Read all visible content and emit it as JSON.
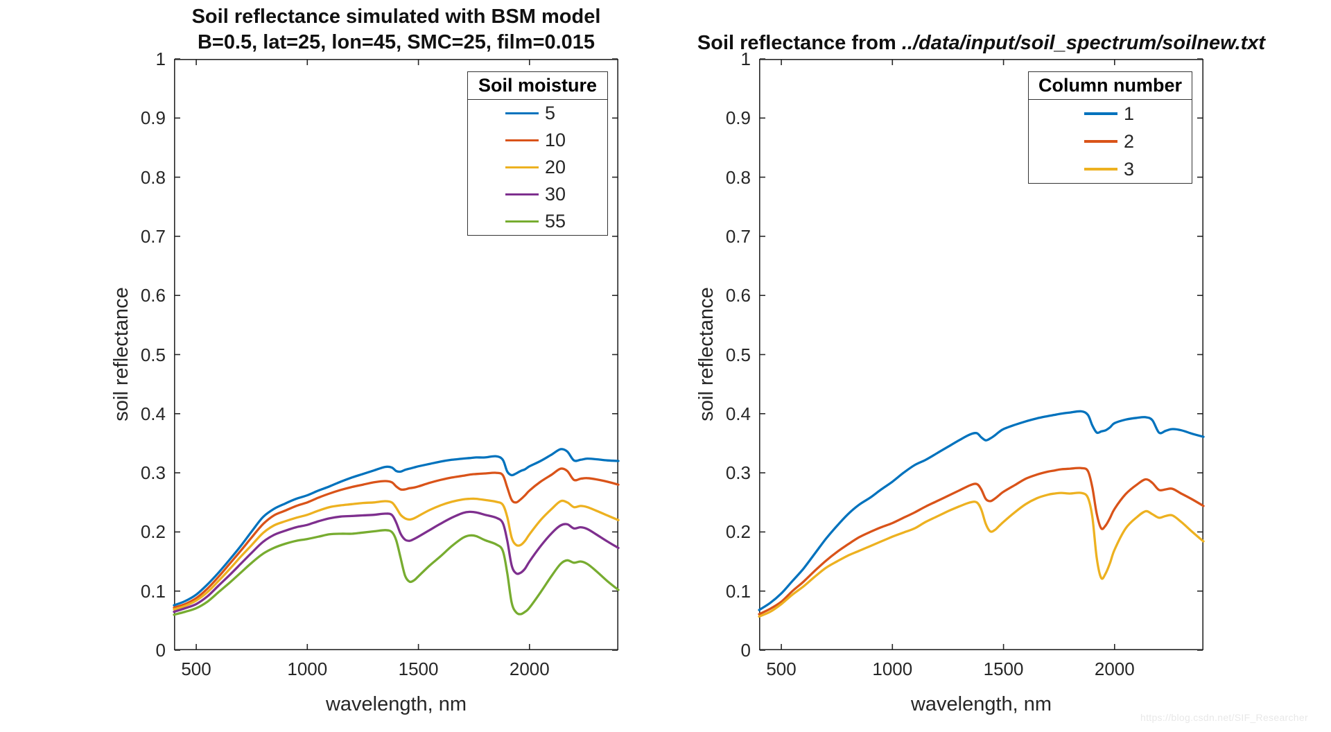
{
  "figure": {
    "watermark": "https://blog.csdn.net/SIF_Researcher"
  },
  "chart_data": [
    {
      "type": "line",
      "title": "Soil reflectance simulated with BSM model",
      "subtitle": "B=0.5, lat=25, lon=45, SMC=25, film=0.015",
      "xlabel": "wavelength, nm",
      "ylabel": "soil reflectance",
      "legend_title": "Soil moisture",
      "legend_position": "upper-right-inside",
      "grid": false,
      "xlim": [
        400,
        2400
      ],
      "ylim": [
        0,
        1
      ],
      "xticks": [
        500,
        1000,
        1500,
        2000
      ],
      "yticks": [
        0,
        0.1,
        0.2,
        0.3,
        0.4,
        0.5,
        0.6,
        0.7,
        0.8,
        0.9,
        1
      ],
      "x": [
        400,
        450,
        500,
        550,
        600,
        650,
        700,
        750,
        800,
        850,
        900,
        950,
        1000,
        1050,
        1100,
        1150,
        1200,
        1250,
        1300,
        1350,
        1380,
        1400,
        1420,
        1440,
        1460,
        1480,
        1500,
        1550,
        1600,
        1650,
        1700,
        1730,
        1760,
        1800,
        1850,
        1880,
        1900,
        1920,
        1940,
        1960,
        1980,
        2000,
        2050,
        2100,
        2140,
        2170,
        2200,
        2230,
        2260,
        2300,
        2350,
        2400
      ],
      "series": [
        {
          "name": "5",
          "color": "#0072BD",
          "values": [
            0.076,
            0.083,
            0.094,
            0.111,
            0.131,
            0.153,
            0.176,
            0.201,
            0.225,
            0.239,
            0.248,
            0.256,
            0.262,
            0.27,
            0.277,
            0.285,
            0.292,
            0.298,
            0.304,
            0.31,
            0.309,
            0.303,
            0.302,
            0.305,
            0.307,
            0.309,
            0.311,
            0.315,
            0.319,
            0.322,
            0.324,
            0.325,
            0.326,
            0.326,
            0.328,
            0.322,
            0.302,
            0.296,
            0.299,
            0.303,
            0.306,
            0.311,
            0.32,
            0.331,
            0.34,
            0.336,
            0.321,
            0.322,
            0.324,
            0.323,
            0.321,
            0.32
          ]
        },
        {
          "name": "10",
          "color": "#D95319",
          "values": [
            0.072,
            0.078,
            0.088,
            0.104,
            0.124,
            0.146,
            0.168,
            0.191,
            0.213,
            0.228,
            0.236,
            0.244,
            0.25,
            0.258,
            0.265,
            0.271,
            0.276,
            0.28,
            0.284,
            0.286,
            0.284,
            0.277,
            0.272,
            0.272,
            0.274,
            0.275,
            0.277,
            0.283,
            0.288,
            0.292,
            0.295,
            0.297,
            0.298,
            0.299,
            0.3,
            0.296,
            0.275,
            0.254,
            0.25,
            0.255,
            0.262,
            0.27,
            0.285,
            0.297,
            0.307,
            0.303,
            0.288,
            0.29,
            0.291,
            0.289,
            0.285,
            0.28
          ]
        },
        {
          "name": "20",
          "color": "#EDB120",
          "values": [
            0.069,
            0.075,
            0.084,
            0.098,
            0.117,
            0.137,
            0.158,
            0.178,
            0.198,
            0.211,
            0.218,
            0.224,
            0.229,
            0.236,
            0.242,
            0.245,
            0.247,
            0.249,
            0.25,
            0.252,
            0.25,
            0.241,
            0.229,
            0.223,
            0.221,
            0.223,
            0.227,
            0.237,
            0.245,
            0.251,
            0.255,
            0.256,
            0.256,
            0.254,
            0.251,
            0.246,
            0.225,
            0.19,
            0.178,
            0.178,
            0.185,
            0.196,
            0.22,
            0.239,
            0.252,
            0.25,
            0.242,
            0.244,
            0.242,
            0.236,
            0.228,
            0.22
          ]
        },
        {
          "name": "30",
          "color": "#7E2F8E",
          "values": [
            0.065,
            0.071,
            0.078,
            0.091,
            0.109,
            0.127,
            0.146,
            0.165,
            0.183,
            0.195,
            0.202,
            0.208,
            0.212,
            0.218,
            0.223,
            0.226,
            0.227,
            0.228,
            0.229,
            0.231,
            0.229,
            0.216,
            0.197,
            0.187,
            0.185,
            0.188,
            0.192,
            0.203,
            0.214,
            0.224,
            0.232,
            0.234,
            0.233,
            0.229,
            0.224,
            0.215,
            0.185,
            0.143,
            0.13,
            0.131,
            0.138,
            0.15,
            0.176,
            0.198,
            0.211,
            0.213,
            0.206,
            0.208,
            0.205,
            0.196,
            0.184,
            0.173
          ]
        },
        {
          "name": "55",
          "color": "#77AC30",
          "values": [
            0.06,
            0.065,
            0.071,
            0.082,
            0.098,
            0.114,
            0.131,
            0.148,
            0.163,
            0.173,
            0.18,
            0.185,
            0.188,
            0.192,
            0.196,
            0.197,
            0.197,
            0.199,
            0.201,
            0.203,
            0.2,
            0.186,
            0.156,
            0.126,
            0.116,
            0.118,
            0.125,
            0.143,
            0.159,
            0.176,
            0.19,
            0.194,
            0.193,
            0.186,
            0.179,
            0.168,
            0.13,
            0.08,
            0.064,
            0.061,
            0.065,
            0.072,
            0.098,
            0.126,
            0.146,
            0.152,
            0.148,
            0.15,
            0.146,
            0.134,
            0.117,
            0.102
          ]
        }
      ]
    },
    {
      "type": "line",
      "title": "Soil reflectance from ../data/input/soil_spectrum/soilnew.txt",
      "title_prefix": "Soil reflectance from ",
      "title_italic": "../data/input/soil_spectrum/soilnew.txt",
      "xlabel": "wavelength, nm",
      "ylabel": "soil reflectance",
      "legend_title": "Column number",
      "legend_position": "upper-right-inside",
      "grid": false,
      "xlim": [
        400,
        2400
      ],
      "ylim": [
        0,
        1
      ],
      "xticks": [
        500,
        1000,
        1500,
        2000
      ],
      "yticks": [
        0,
        0.1,
        0.2,
        0.3,
        0.4,
        0.5,
        0.6,
        0.7,
        0.8,
        0.9,
        1
      ],
      "x": [
        400,
        450,
        500,
        550,
        600,
        650,
        700,
        750,
        800,
        850,
        900,
        950,
        1000,
        1050,
        1100,
        1150,
        1200,
        1250,
        1300,
        1350,
        1380,
        1400,
        1420,
        1440,
        1460,
        1480,
        1500,
        1550,
        1600,
        1650,
        1700,
        1730,
        1760,
        1800,
        1850,
        1880,
        1900,
        1920,
        1940,
        1960,
        1980,
        2000,
        2050,
        2100,
        2140,
        2170,
        2200,
        2230,
        2260,
        2300,
        2350,
        2400
      ],
      "series": [
        {
          "name": "1",
          "color": "#0072BD",
          "values": [
            0.068,
            0.08,
            0.096,
            0.117,
            0.138,
            0.163,
            0.188,
            0.21,
            0.23,
            0.246,
            0.258,
            0.272,
            0.285,
            0.3,
            0.313,
            0.322,
            0.333,
            0.344,
            0.355,
            0.365,
            0.367,
            0.36,
            0.355,
            0.358,
            0.363,
            0.369,
            0.374,
            0.381,
            0.387,
            0.392,
            0.396,
            0.398,
            0.4,
            0.402,
            0.404,
            0.398,
            0.38,
            0.368,
            0.37,
            0.372,
            0.377,
            0.384,
            0.39,
            0.393,
            0.394,
            0.389,
            0.368,
            0.371,
            0.374,
            0.372,
            0.366,
            0.361
          ]
        },
        {
          "name": "2",
          "color": "#D95319",
          "values": [
            0.061,
            0.07,
            0.082,
            0.1,
            0.116,
            0.134,
            0.151,
            0.166,
            0.179,
            0.191,
            0.2,
            0.208,
            0.215,
            0.224,
            0.233,
            0.243,
            0.252,
            0.261,
            0.27,
            0.279,
            0.281,
            0.272,
            0.256,
            0.252,
            0.256,
            0.262,
            0.268,
            0.279,
            0.29,
            0.297,
            0.302,
            0.304,
            0.306,
            0.307,
            0.308,
            0.303,
            0.275,
            0.23,
            0.206,
            0.211,
            0.224,
            0.239,
            0.264,
            0.28,
            0.289,
            0.283,
            0.271,
            0.272,
            0.273,
            0.265,
            0.255,
            0.244
          ]
        },
        {
          "name": "3",
          "color": "#EDB120",
          "values": [
            0.057,
            0.065,
            0.078,
            0.094,
            0.108,
            0.124,
            0.139,
            0.15,
            0.16,
            0.168,
            0.176,
            0.184,
            0.192,
            0.199,
            0.206,
            0.217,
            0.226,
            0.235,
            0.243,
            0.25,
            0.25,
            0.238,
            0.214,
            0.201,
            0.203,
            0.21,
            0.217,
            0.233,
            0.247,
            0.257,
            0.263,
            0.265,
            0.266,
            0.265,
            0.266,
            0.258,
            0.225,
            0.155,
            0.122,
            0.13,
            0.148,
            0.17,
            0.206,
            0.225,
            0.235,
            0.23,
            0.224,
            0.227,
            0.228,
            0.217,
            0.2,
            0.184
          ]
        }
      ]
    }
  ]
}
